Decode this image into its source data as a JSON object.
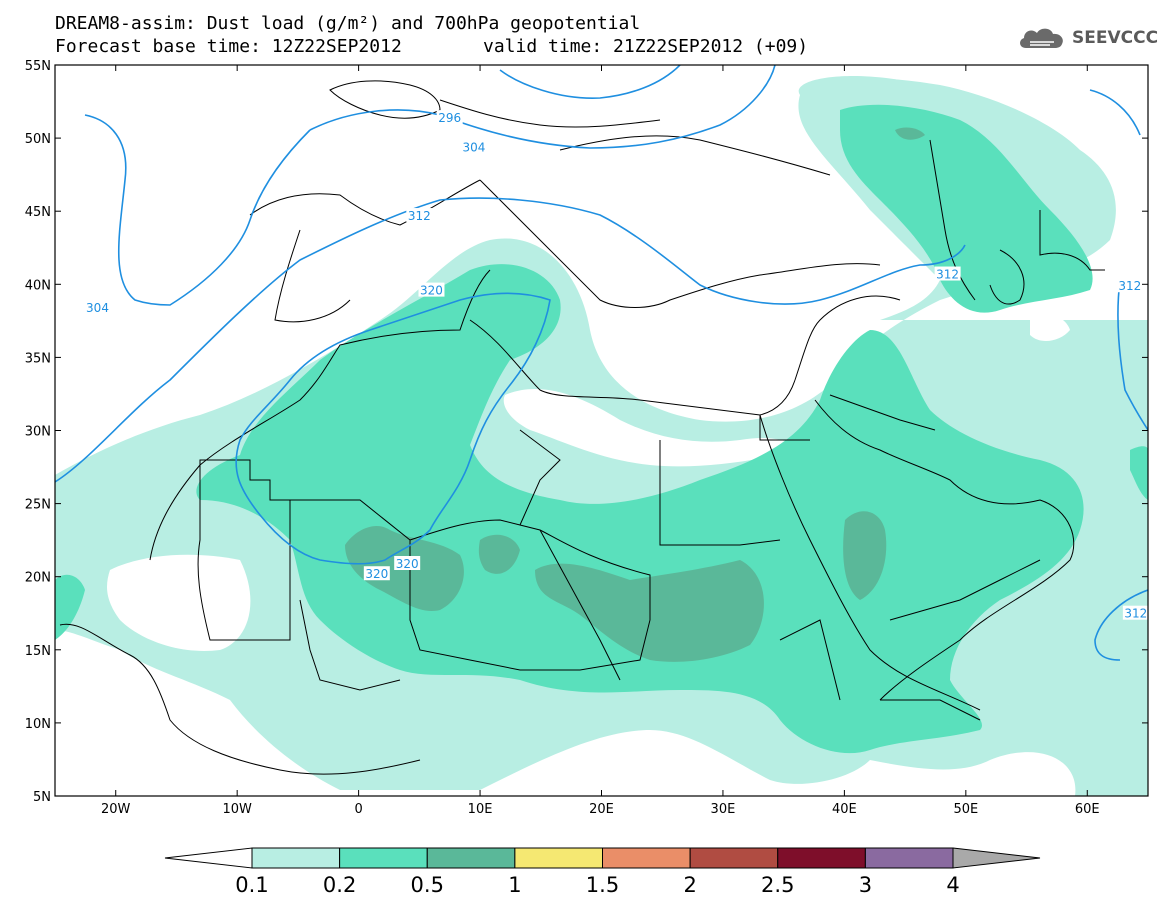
{
  "header": {
    "title_line1": "DREAM8-assim: Dust load (g/m²) and 700hPa geopotential",
    "title_base": "Forecast base time: 12Z22SEP2012",
    "title_valid": "valid time: 21Z22SEP2012 (+09)",
    "logo_text": "SEEVCCC"
  },
  "map": {
    "lon_range": [
      -25,
      65
    ],
    "lat_range": [
      5,
      55
    ],
    "lon_ticks": [
      {
        "value": -20,
        "label": "20W"
      },
      {
        "value": -10,
        "label": "10W"
      },
      {
        "value": 0,
        "label": "0"
      },
      {
        "value": 10,
        "label": "10E"
      },
      {
        "value": 20,
        "label": "20E"
      },
      {
        "value": 30,
        "label": "30E"
      },
      {
        "value": 40,
        "label": "40E"
      },
      {
        "value": 50,
        "label": "50E"
      },
      {
        "value": 60,
        "label": "60E"
      }
    ],
    "lat_ticks": [
      {
        "value": 55,
        "label": "55N"
      },
      {
        "value": 50,
        "label": "50N"
      },
      {
        "value": 45,
        "label": "45N"
      },
      {
        "value": 40,
        "label": "40N"
      },
      {
        "value": 35,
        "label": "35N"
      },
      {
        "value": 30,
        "label": "30N"
      },
      {
        "value": 25,
        "label": "25N"
      },
      {
        "value": 20,
        "label": "20N"
      },
      {
        "value": 15,
        "label": "15N"
      },
      {
        "value": 10,
        "label": "10N"
      },
      {
        "value": 5,
        "label": "5N"
      }
    ],
    "contour_labels": [
      {
        "text": "296",
        "lon": 7.5,
        "lat": 51.3
      },
      {
        "text": "304",
        "lon": 9.5,
        "lat": 49.3
      },
      {
        "text": "304",
        "lon": -21.5,
        "lat": 38.3
      },
      {
        "text": "312",
        "lon": 5,
        "lat": 44.6
      },
      {
        "text": "312",
        "lon": 48.5,
        "lat": 40.6
      },
      {
        "text": "312",
        "lon": 63.5,
        "lat": 39.8
      },
      {
        "text": "312",
        "lon": 64,
        "lat": 17.4
      },
      {
        "text": "320",
        "lon": 6,
        "lat": 39.5
      },
      {
        "text": "320",
        "lon": 4,
        "lat": 20.8
      },
      {
        "text": "320",
        "lon": 1.5,
        "lat": 20.1
      }
    ]
  },
  "colorbar": {
    "colors": [
      "#ffffff",
      "#b8eee3",
      "#5ae0bc",
      "#5ab899",
      "#f5e872",
      "#ea8e68",
      "#b04c42",
      "#7e0e2a",
      "#8a6aa0",
      "#a9a9a9"
    ],
    "labels": [
      "0.1",
      "0.2",
      "0.5",
      "1",
      "1.5",
      "2",
      "2.5",
      "3",
      "4"
    ]
  }
}
